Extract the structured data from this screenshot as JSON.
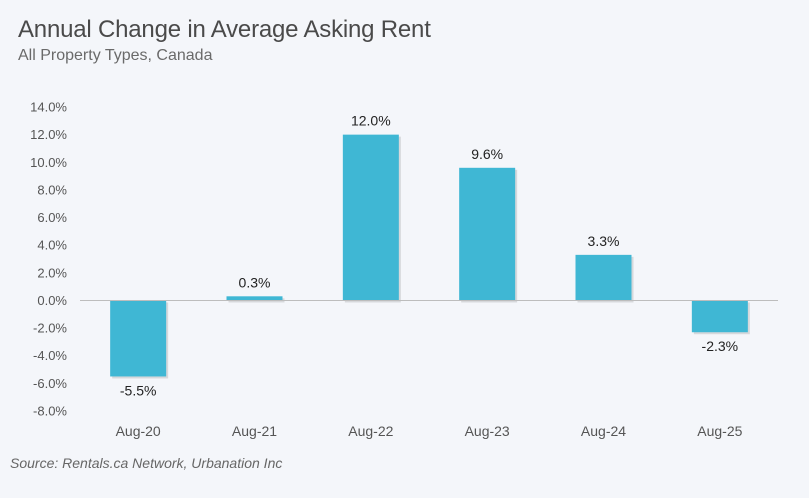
{
  "chart_data": {
    "type": "bar",
    "title": "Annual Change in Average Asking Rent",
    "subtitle": "All Property Types, Canada",
    "source": "Source: Rentals.ca Network, Urbanation Inc",
    "categories": [
      "Aug-20",
      "Aug-21",
      "Aug-22",
      "Aug-23",
      "Aug-24",
      "Aug-25"
    ],
    "values": [
      -5.5,
      0.3,
      12.0,
      9.6,
      3.3,
      -2.3
    ],
    "data_labels": [
      "-5.5%",
      "0.3%",
      "12.0%",
      "9.6%",
      "3.3%",
      "-2.3%"
    ],
    "ylim": [
      -8,
      14
    ],
    "yticks": [
      14,
      12,
      10,
      8,
      6,
      4,
      2,
      0,
      -2,
      -4,
      -6,
      -8
    ],
    "ytick_labels": [
      "14.0%",
      "12.0%",
      "10.0%",
      "8.0%",
      "6.0%",
      "4.0%",
      "2.0%",
      "0.0%",
      "-2.0%",
      "-4.0%",
      "-6.0%",
      "-8.0%"
    ],
    "bar_color": "#3fb7d4",
    "grid": false,
    "legend": "none"
  }
}
